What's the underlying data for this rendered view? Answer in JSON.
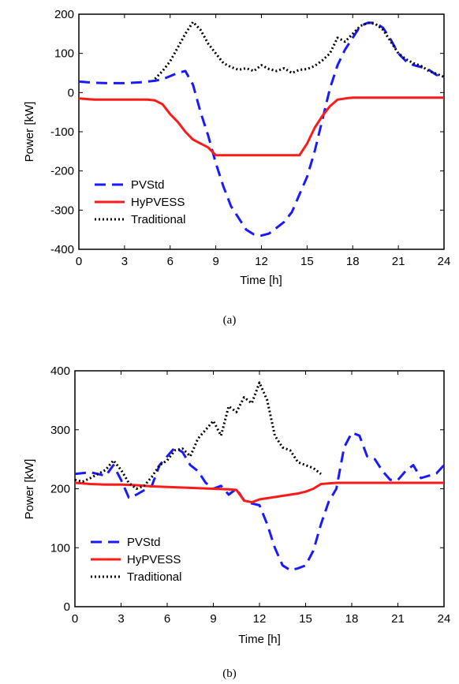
{
  "chart_data": [
    {
      "type": "line",
      "caption": "(a)",
      "xlabel": "Time [h]",
      "ylabel": "Power [kW]",
      "xlim": [
        0,
        24
      ],
      "ylim": [
        -400,
        200
      ],
      "xticks": [
        0,
        3,
        6,
        9,
        12,
        15,
        18,
        21,
        24
      ],
      "yticks": [
        -400,
        -300,
        -200,
        -100,
        0,
        100,
        200
      ],
      "legend_position": "bottom-left",
      "series": [
        {
          "name": "PVStd",
          "color": "#1a1aff",
          "style": "dashed",
          "x": [
            0,
            1,
            2,
            3,
            4,
            5,
            5.5,
            6,
            6.5,
            7,
            7.5,
            8,
            8.5,
            9,
            9.5,
            10,
            10.5,
            11,
            11.5,
            12,
            12.5,
            13,
            13.5,
            14,
            14.5,
            15,
            15.5,
            16,
            16.5,
            17,
            17.5,
            18,
            18.5,
            19,
            19.5,
            20,
            20.5,
            21,
            21.5,
            22,
            22.5,
            23,
            23.5,
            24
          ],
          "y": [
            28,
            25,
            24,
            24,
            26,
            30,
            34,
            42,
            50,
            55,
            20,
            -50,
            -110,
            -180,
            -240,
            -290,
            -320,
            -350,
            -362,
            -365,
            -360,
            -345,
            -330,
            -305,
            -260,
            -215,
            -150,
            -70,
            10,
            70,
            110,
            140,
            170,
            178,
            178,
            165,
            135,
            100,
            80,
            70,
            65,
            58,
            45,
            38
          ]
        },
        {
          "name": "HyPVESS",
          "color": "#ff1a1a",
          "style": "solid",
          "x": [
            0,
            1,
            2,
            3,
            4,
            4.5,
            5,
            5.5,
            6,
            6.5,
            7,
            7.5,
            8,
            8.5,
            9,
            10,
            11,
            12,
            13,
            14,
            14.5,
            15,
            15.5,
            16,
            16.5,
            17,
            17.5,
            18,
            19,
            20,
            21,
            22,
            23,
            24
          ],
          "y": [
            -15,
            -18,
            -18,
            -18,
            -18,
            -18,
            -20,
            -30,
            -55,
            -75,
            -100,
            -120,
            -130,
            -140,
            -160,
            -160,
            -160,
            -160,
            -160,
            -160,
            -160,
            -130,
            -90,
            -60,
            -35,
            -18,
            -15,
            -13,
            -13,
            -13,
            -13,
            -13,
            -13,
            -13
          ]
        },
        {
          "name": "Traditional",
          "color": "#000000",
          "style": "dotted",
          "x": [
            5,
            5.5,
            6,
            6.5,
            7,
            7.5,
            8,
            8.5,
            9,
            9.5,
            10,
            10.5,
            11,
            11.5,
            12,
            12.5,
            13,
            13.5,
            14,
            14.5,
            15,
            15.5,
            16,
            16.5,
            17,
            17.5,
            18,
            18.5,
            19,
            19.5,
            20,
            20.5,
            21,
            21.5,
            22,
            22.5,
            23,
            23.5,
            24
          ],
          "y": [
            35,
            55,
            80,
            115,
            150,
            180,
            160,
            125,
            100,
            75,
            65,
            58,
            62,
            55,
            70,
            60,
            55,
            62,
            50,
            58,
            60,
            68,
            82,
            100,
            140,
            130,
            150,
            170,
            178,
            175,
            160,
            130,
            100,
            85,
            75,
            68,
            55,
            48,
            40
          ]
        }
      ]
    },
    {
      "type": "line",
      "caption": "(b)",
      "xlabel": "Time [h]",
      "ylabel": "Power [kW]",
      "xlim": [
        0,
        24
      ],
      "ylim": [
        0,
        400
      ],
      "xticks": [
        0,
        3,
        6,
        9,
        12,
        15,
        18,
        21,
        24
      ],
      "yticks": [
        0,
        100,
        200,
        300,
        400
      ],
      "legend_position": "bottom-left",
      "series": [
        {
          "name": "PVStd",
          "color": "#1a1aff",
          "style": "dashed",
          "x": [
            0,
            1,
            2,
            2.5,
            3,
            3.5,
            4,
            5,
            5.5,
            6,
            6.5,
            7,
            7.5,
            8,
            8.5,
            9,
            9.5,
            10,
            10.5,
            11,
            11.5,
            12,
            12.5,
            13,
            13.5,
            14,
            14.5,
            15,
            15.5,
            16,
            16.5,
            17,
            17.5,
            18,
            18.5,
            19,
            19.5,
            20,
            20.5,
            21,
            21.5,
            22,
            22.5,
            23,
            23.5,
            24
          ],
          "y": [
            225,
            228,
            222,
            240,
            215,
            185,
            190,
            205,
            240,
            255,
            270,
            262,
            240,
            230,
            210,
            200,
            205,
            190,
            200,
            180,
            175,
            172,
            140,
            100,
            70,
            62,
            65,
            70,
            95,
            140,
            178,
            200,
            270,
            295,
            290,
            255,
            250,
            230,
            215,
            215,
            230,
            240,
            218,
            222,
            226,
            240
          ]
        },
        {
          "name": "HyPVESS",
          "color": "#ff1a1a",
          "style": "solid",
          "x": [
            0,
            1,
            2,
            3,
            4,
            5,
            6,
            7,
            8,
            9,
            10,
            10.5,
            11,
            11.5,
            12,
            12.5,
            13,
            13.5,
            14,
            14.5,
            15,
            15.5,
            16,
            17,
            18,
            19,
            20,
            21,
            22,
            23,
            24
          ],
          "y": [
            210,
            208,
            207,
            207,
            206,
            204,
            203,
            202,
            201,
            200,
            199,
            198,
            180,
            177,
            182,
            184,
            186,
            188,
            190,
            192,
            195,
            200,
            208,
            210,
            210,
            210,
            210,
            210,
            210,
            210,
            210
          ]
        },
        {
          "name": "Traditional",
          "color": "#000000",
          "style": "dotted",
          "x": [
            0,
            0.5,
            1,
            1.5,
            2,
            2.5,
            3,
            3.5,
            4,
            4.5,
            5,
            5.5,
            6,
            6.5,
            7,
            7.5,
            8,
            8.5,
            9,
            9.5,
            10,
            10.5,
            11,
            11.5,
            12,
            12.5,
            13,
            13.5,
            14,
            14.5,
            15,
            15.5,
            16
          ],
          "y": [
            215,
            212,
            218,
            225,
            232,
            248,
            232,
            210,
            200,
            205,
            220,
            240,
            248,
            265,
            268,
            255,
            285,
            300,
            315,
            290,
            340,
            330,
            355,
            345,
            380,
            350,
            290,
            270,
            265,
            245,
            240,
            235,
            225
          ]
        }
      ]
    }
  ]
}
